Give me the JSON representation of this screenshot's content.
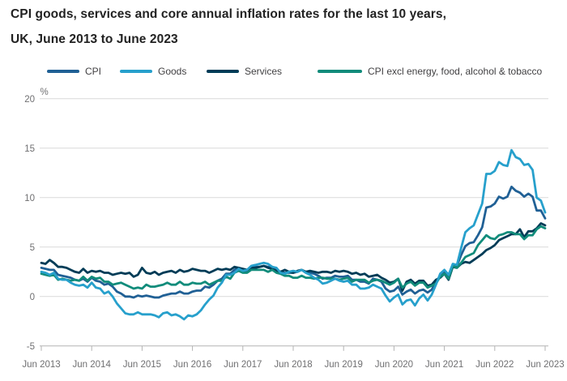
{
  "header": {
    "title_line1": "CPI goods, services and core annual inflation rates for the last 10 years,",
    "title_line2": "UK, June 2013 to June 2023"
  },
  "legend": {
    "items": [
      {
        "label": "CPI",
        "color": "#206095"
      },
      {
        "label": "Goods",
        "color": "#27A0CC"
      },
      {
        "label": "Services",
        "color": "#003C57"
      },
      {
        "label": "CPI excl energy, food, alcohol & tobacco",
        "color": "#118C7B"
      }
    ]
  },
  "chart_data": {
    "type": "line",
    "title": "CPI goods, services and core annual inflation rates for the last 10 years, UK, June 2013 to June 2023",
    "unit_label": "%",
    "grid": "horizontal-only",
    "legend_position": "top",
    "x_frequency": "monthly",
    "x_range": [
      "Jun 2013",
      "Jun 2023"
    ],
    "x_tick_labels": [
      "Jun 2013",
      "Jun 2014",
      "Jun 2015",
      "Jun 2016",
      "Jun 2017",
      "Jun 2018",
      "Jun 2019",
      "Jun 2020",
      "Jun 2021",
      "Jun 2022",
      "Jun 2023"
    ],
    "y_ticks": [
      20,
      15,
      10,
      5,
      0,
      -5
    ],
    "ylim": [
      -5,
      20
    ],
    "series": [
      {
        "name": "CPI",
        "color": "#206095",
        "values": [
          2.9,
          2.8,
          2.7,
          2.7,
          2.2,
          2.1,
          2.0,
          1.9,
          1.7,
          1.6,
          1.8,
          1.5,
          1.9,
          1.6,
          1.5,
          1.2,
          1.3,
          1.0,
          0.5,
          0.3,
          0.0,
          0.0,
          -0.1,
          0.1,
          0.0,
          0.1,
          0.0,
          -0.1,
          -0.1,
          0.1,
          0.2,
          0.3,
          0.3,
          0.5,
          0.3,
          0.3,
          0.5,
          0.6,
          0.6,
          1.0,
          0.9,
          1.2,
          1.6,
          1.8,
          2.3,
          2.3,
          2.7,
          2.9,
          2.6,
          2.6,
          2.9,
          3.0,
          3.0,
          3.1,
          3.0,
          3.0,
          2.7,
          2.5,
          2.4,
          2.4,
          2.4,
          2.5,
          2.7,
          2.4,
          2.4,
          2.3,
          2.1,
          1.8,
          1.9,
          1.9,
          2.1,
          2.0,
          2.0,
          2.1,
          1.7,
          1.7,
          1.5,
          1.5,
          1.3,
          1.8,
          1.7,
          1.5,
          0.8,
          0.5,
          0.6,
          1.0,
          0.2,
          0.5,
          0.7,
          0.3,
          0.6,
          0.7,
          0.4,
          0.7,
          1.5,
          2.1,
          2.5,
          2.0,
          3.2,
          3.1,
          4.2,
          5.1,
          5.4,
          5.5,
          6.2,
          7.0,
          9.0,
          9.1,
          9.4,
          10.1,
          9.9,
          10.1,
          11.1,
          10.7,
          10.5,
          10.1,
          10.4,
          10.1,
          8.7,
          8.7,
          7.9
        ]
      },
      {
        "name": "Goods",
        "color": "#27A0CC",
        "values": [
          2.5,
          2.4,
          2.2,
          2.4,
          1.8,
          1.7,
          1.7,
          1.4,
          1.2,
          1.1,
          1.2,
          0.9,
          1.4,
          0.9,
          0.8,
          0.3,
          0.5,
          0.0,
          -0.7,
          -1.2,
          -1.7,
          -1.8,
          -1.8,
          -1.6,
          -1.8,
          -1.8,
          -1.8,
          -1.9,
          -2.1,
          -1.7,
          -1.6,
          -1.9,
          -1.8,
          -2.0,
          -2.3,
          -1.9,
          -2.0,
          -1.8,
          -1.4,
          -0.8,
          -0.3,
          0.1,
          0.9,
          1.4,
          2.2,
          2.2,
          2.4,
          2.8,
          2.6,
          2.7,
          3.1,
          3.2,
          3.3,
          3.4,
          3.3,
          3.0,
          2.9,
          2.4,
          2.3,
          2.5,
          2.6,
          2.5,
          2.7,
          2.4,
          2.2,
          1.9,
          1.7,
          1.3,
          1.4,
          1.6,
          1.8,
          1.6,
          1.5,
          1.6,
          1.2,
          1.2,
          0.8,
          0.8,
          0.9,
          1.2,
          1.0,
          0.8,
          0.1,
          -0.5,
          -0.1,
          0.2,
          -0.8,
          -0.4,
          -0.3,
          -0.9,
          -0.2,
          0.2,
          -0.4,
          0.2,
          1.2,
          2.3,
          2.7,
          2.2,
          3.3,
          3.2,
          4.9,
          6.5,
          6.9,
          7.2,
          8.3,
          9.4,
          12.4,
          12.4,
          12.7,
          13.6,
          13.3,
          13.2,
          14.8,
          14.1,
          13.9,
          13.3,
          13.4,
          12.8,
          10.0,
          9.7,
          8.5
        ]
      },
      {
        "name": "Services",
        "color": "#003C57",
        "values": [
          3.4,
          3.3,
          3.7,
          3.4,
          3.0,
          3.0,
          2.9,
          2.7,
          2.5,
          2.4,
          2.8,
          2.4,
          2.6,
          2.5,
          2.6,
          2.4,
          2.4,
          2.2,
          2.3,
          2.4,
          2.3,
          2.4,
          2.0,
          2.2,
          2.9,
          2.4,
          2.3,
          2.5,
          2.2,
          2.4,
          2.5,
          2.6,
          2.4,
          2.7,
          2.5,
          2.6,
          2.8,
          2.7,
          2.6,
          2.6,
          2.4,
          2.6,
          2.8,
          2.7,
          2.8,
          2.7,
          3.0,
          2.9,
          2.8,
          2.7,
          2.9,
          2.9,
          3.0,
          3.1,
          2.9,
          2.8,
          2.6,
          2.5,
          2.7,
          2.5,
          2.4,
          2.6,
          2.7,
          2.5,
          2.6,
          2.5,
          2.4,
          2.5,
          2.5,
          2.4,
          2.6,
          2.5,
          2.6,
          2.5,
          2.3,
          2.4,
          2.2,
          2.3,
          2.0,
          2.1,
          2.2,
          1.9,
          1.7,
          1.4,
          1.5,
          1.8,
          0.6,
          1.5,
          1.7,
          1.3,
          1.6,
          1.6,
          1.1,
          1.2,
          1.7,
          1.9,
          2.3,
          1.7,
          3.0,
          2.9,
          3.3,
          3.5,
          3.4,
          3.7,
          4.0,
          4.3,
          4.7,
          4.9,
          5.2,
          5.7,
          5.9,
          6.1,
          6.3,
          6.3,
          6.8,
          6.0,
          6.6,
          6.6,
          6.9,
          7.4,
          7.2
        ]
      },
      {
        "name": "CPI excl energy, food, alcohol & tobacco",
        "color": "#118C7B",
        "values": [
          2.3,
          2.2,
          2.1,
          2.2,
          1.7,
          1.8,
          1.7,
          1.6,
          1.7,
          1.6,
          2.0,
          1.6,
          2.0,
          1.8,
          1.9,
          1.5,
          1.5,
          1.2,
          1.3,
          1.4,
          1.2,
          1.0,
          0.8,
          0.9,
          0.8,
          1.2,
          1.0,
          1.0,
          1.1,
          1.2,
          1.4,
          1.2,
          1.2,
          1.5,
          1.2,
          1.2,
          1.4,
          1.3,
          1.3,
          1.5,
          1.2,
          1.4,
          1.6,
          1.6,
          2.0,
          1.8,
          2.4,
          2.6,
          2.4,
          2.4,
          2.7,
          2.7,
          2.7,
          2.7,
          2.5,
          2.7,
          2.4,
          2.3,
          2.1,
          2.1,
          1.9,
          1.9,
          2.1,
          1.9,
          1.9,
          1.8,
          1.9,
          1.9,
          1.8,
          1.8,
          1.8,
          1.7,
          1.8,
          1.9,
          1.5,
          1.7,
          1.7,
          1.7,
          1.4,
          1.6,
          1.7,
          1.6,
          1.4,
          1.2,
          1.4,
          1.8,
          0.9,
          1.3,
          1.5,
          1.1,
          1.4,
          1.4,
          0.9,
          1.1,
          1.3,
          2.0,
          2.3,
          1.8,
          3.1,
          2.9,
          3.4,
          4.0,
          4.2,
          4.4,
          5.2,
          5.7,
          6.2,
          5.9,
          5.8,
          6.2,
          6.3,
          6.5,
          6.5,
          6.3,
          6.3,
          5.8,
          6.2,
          6.2,
          6.8,
          7.1,
          6.9
        ]
      }
    ],
    "colors": {
      "grid": "#d9d9d9",
      "axis": "#b3b3b3",
      "tick_text": "#6f6f71"
    }
  }
}
